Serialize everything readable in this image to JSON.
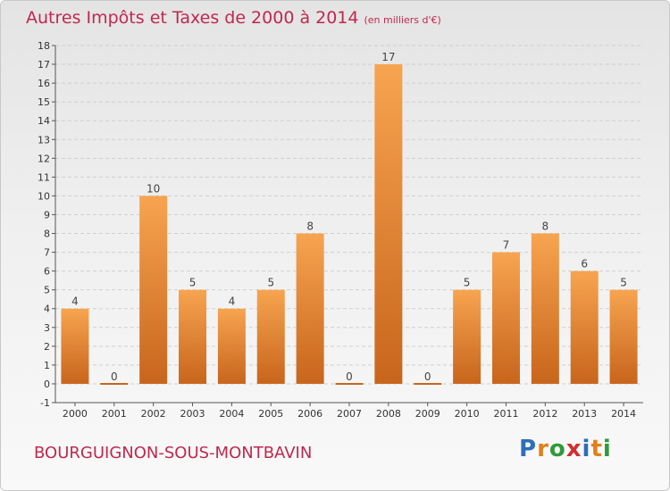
{
  "header": {
    "title": "Autres Impôts et Taxes de 2000 à 2014",
    "unit": "(en milliers d'€)"
  },
  "footer": {
    "commune": "BOURGUIGNON-SOUS-MONTBAVIN",
    "logo_letters": [
      "P",
      "r",
      "o",
      "x",
      "i",
      "t",
      "i"
    ]
  },
  "colors": {
    "bar_top": "#f7a450",
    "bar_bottom": "#c8651c",
    "title": "#c0284e",
    "logo": [
      "#2e6fb8",
      "#e0801a",
      "#2e9a3a",
      "#d03030",
      "#2e6fb8",
      "#e0801a",
      "#2e9a3a"
    ]
  },
  "chart_data": {
    "type": "bar",
    "categories": [
      "2000",
      "2001",
      "2002",
      "2003",
      "2004",
      "2005",
      "2006",
      "2007",
      "2008",
      "2009",
      "2010",
      "2011",
      "2012",
      "2013",
      "2014"
    ],
    "values": [
      4,
      0,
      10,
      5,
      4,
      5,
      8,
      0,
      17,
      0,
      5,
      7,
      8,
      6,
      5
    ],
    "title": "Autres Impôts et Taxes de 2000 à 2014",
    "subtitle": "(en milliers d'€)",
    "ylim": [
      -1,
      18
    ],
    "yticks": [
      -1,
      0,
      1,
      2,
      3,
      4,
      5,
      6,
      7,
      8,
      9,
      10,
      11,
      12,
      13,
      14,
      15,
      16,
      17,
      18
    ],
    "grid": true
  }
}
